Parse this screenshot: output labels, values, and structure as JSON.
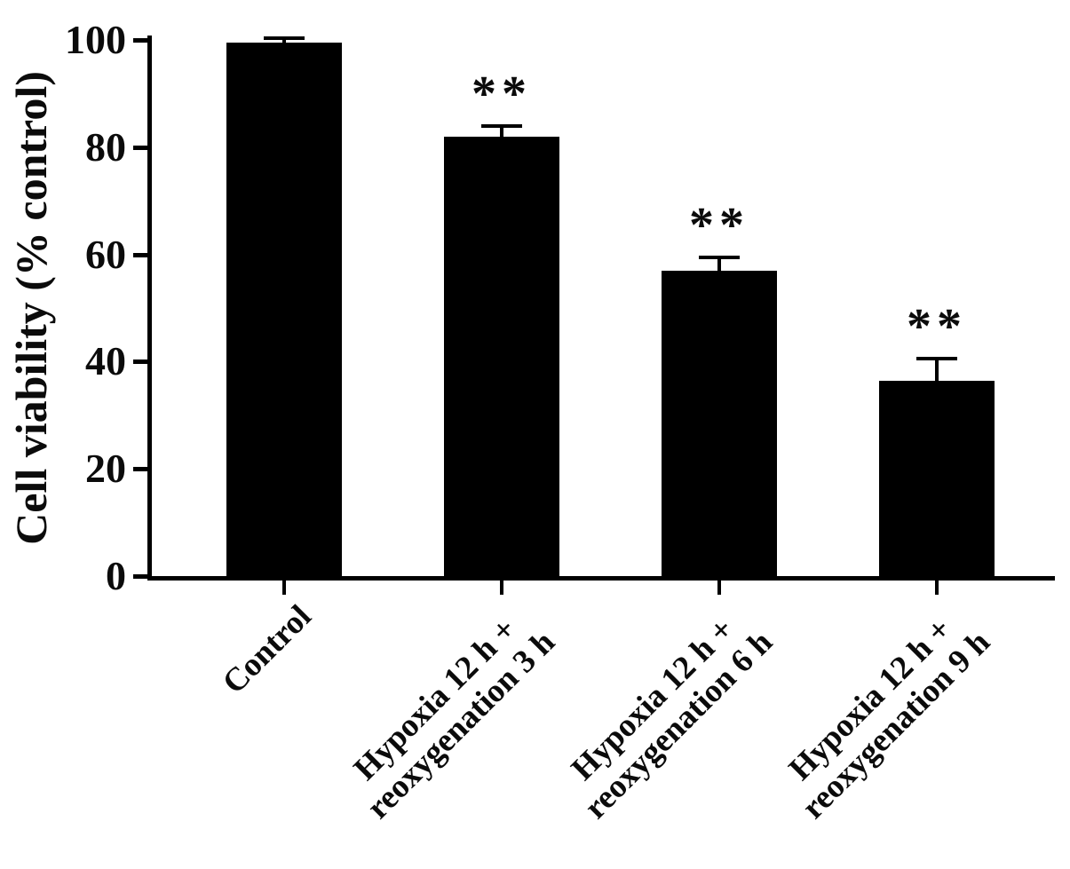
{
  "chart_data": {
    "type": "bar",
    "title": "",
    "ylabel": "Cell viability (% control)",
    "xlabel": "",
    "ylim": [
      0,
      100
    ],
    "yticks": [
      "0",
      "20",
      "40",
      "60",
      "80",
      "100"
    ],
    "categories": [
      "Control",
      "Hypoxia 12 h +\nreoxygenation 3 h",
      "Hypoxia 12 h +\nreoxygenation 6 h",
      "Hypoxia 12 h +\nreoxygenation 9 h"
    ],
    "values": [
      99.5,
      82,
      57,
      36.5
    ],
    "errors": [
      0.8,
      2,
      2.5,
      4
    ],
    "annotations": [
      "",
      "**",
      "**",
      "**"
    ],
    "bar_color": "#000000",
    "axis_color": "#000000",
    "background": "#ffffff",
    "grid": false,
    "legend": "none"
  }
}
